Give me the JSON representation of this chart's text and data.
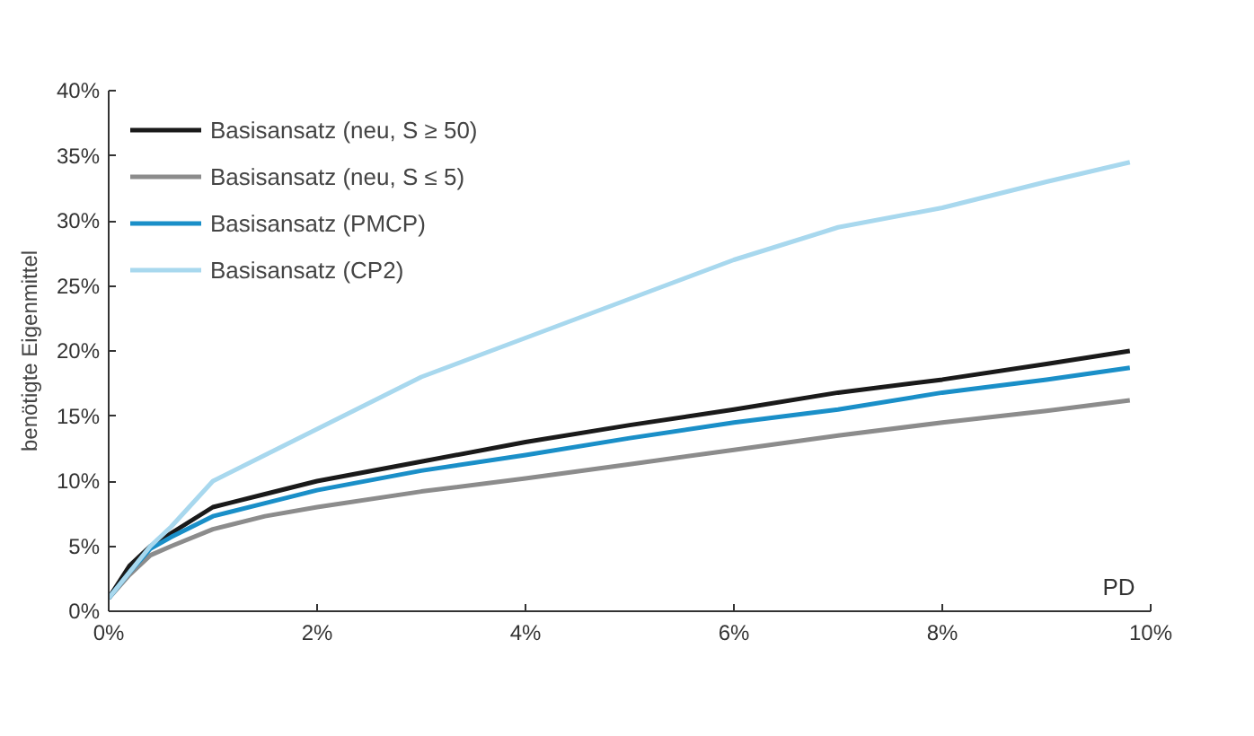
{
  "chart_data": {
    "type": "line",
    "xlabel": "PD",
    "ylabel": "benötigte Eigenmittel",
    "x": [
      0,
      0.2,
      0.4,
      0.6,
      1,
      1.5,
      2,
      3,
      4,
      5,
      6,
      7,
      8,
      9,
      9.8
    ],
    "series": [
      {
        "name": "Basisansatz (neu, S ≥ 50)",
        "color": "#1a1a1a",
        "values": [
          1,
          3.5,
          5,
          6,
          8,
          9,
          10,
          11.5,
          13,
          14.3,
          15.5,
          16.8,
          17.8,
          19,
          20
        ]
      },
      {
        "name": "Basisansatz (neu, S ≤ 5)",
        "color": "#8c8c8c",
        "values": [
          1,
          2.8,
          4.3,
          5,
          6.3,
          7.3,
          8,
          9.2,
          10.2,
          11.3,
          12.4,
          13.5,
          14.5,
          15.4,
          16.2
        ]
      },
      {
        "name": "Basisansatz (PMCP)",
        "color": "#1a8fc8",
        "values": [
          1,
          3,
          4.8,
          5.7,
          7.3,
          8.3,
          9.3,
          10.8,
          12,
          13.3,
          14.5,
          15.5,
          16.8,
          17.8,
          18.7
        ]
      },
      {
        "name": "Basisansatz (CP2)",
        "color": "#a8d8ee",
        "values": [
          1,
          3,
          5,
          6.5,
          10,
          12,
          14,
          18,
          21,
          24,
          27,
          29.5,
          31,
          33,
          34.5
        ]
      }
    ],
    "xlim": [
      0,
      10
    ],
    "ylim": [
      0,
      40
    ],
    "xticks": [
      {
        "value": 0,
        "label": "0%"
      },
      {
        "value": 2,
        "label": "2%"
      },
      {
        "value": 4,
        "label": "4%"
      },
      {
        "value": 6,
        "label": "6%"
      },
      {
        "value": 8,
        "label": "8%"
      },
      {
        "value": 10,
        "label": "10%"
      }
    ],
    "yticks": [
      {
        "value": 0,
        "label": "0%"
      },
      {
        "value": 5,
        "label": "5%"
      },
      {
        "value": 10,
        "label": "10%"
      },
      {
        "value": 15,
        "label": "15%"
      },
      {
        "value": 20,
        "label": "20%"
      },
      {
        "value": 25,
        "label": "25%"
      },
      {
        "value": 30,
        "label": "30%"
      },
      {
        "value": 35,
        "label": "35%"
      },
      {
        "value": 40,
        "label": "40%"
      }
    ],
    "grid": false,
    "legend": "top left",
    "marker": "none",
    "line_style": "solid"
  }
}
